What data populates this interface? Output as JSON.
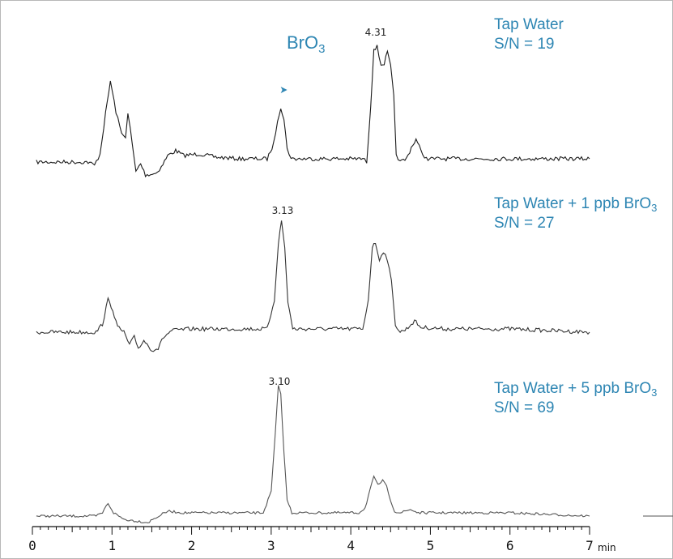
{
  "chart_data": {
    "type": "line",
    "xlabel": "",
    "x_unit": "min",
    "xlim": [
      0,
      7
    ],
    "x_ticks": [
      "0",
      "1",
      "2",
      "3",
      "4",
      "5",
      "6",
      "7"
    ],
    "annotation": {
      "analyte": "BrO",
      "analyte_sub": "3",
      "marker_x": 3.13
    },
    "series": [
      {
        "name": "Tap Water",
        "sn": "S/N = 19",
        "color": "#1a1a1a",
        "peak_label": "4.31",
        "peak_label_x": 4.31,
        "trace": [
          [
            0.05,
            0
          ],
          [
            0.7,
            0
          ],
          [
            0.78,
            -4
          ],
          [
            0.85,
            10
          ],
          [
            0.92,
            60
          ],
          [
            0.98,
            100
          ],
          [
            1.05,
            62
          ],
          [
            1.12,
            35
          ],
          [
            1.17,
            32
          ],
          [
            1.2,
            60
          ],
          [
            1.23,
            40
          ],
          [
            1.27,
            10
          ],
          [
            1.3,
            -12
          ],
          [
            1.36,
            -2
          ],
          [
            1.42,
            -16
          ],
          [
            1.55,
            -14
          ],
          [
            1.62,
            -6
          ],
          [
            1.7,
            8
          ],
          [
            1.8,
            14
          ],
          [
            1.9,
            8
          ],
          [
            2.1,
            10
          ],
          [
            2.3,
            6
          ],
          [
            2.6,
            4
          ],
          [
            2.95,
            4
          ],
          [
            3.03,
            22
          ],
          [
            3.08,
            52
          ],
          [
            3.12,
            68
          ],
          [
            3.16,
            52
          ],
          [
            3.2,
            18
          ],
          [
            3.25,
            4
          ],
          [
            3.6,
            4
          ],
          [
            3.95,
            4
          ],
          [
            4.15,
            4
          ],
          [
            4.2,
            0
          ],
          [
            4.25,
            70
          ],
          [
            4.29,
            140
          ],
          [
            4.33,
            142
          ],
          [
            4.38,
            120
          ],
          [
            4.42,
            122
          ],
          [
            4.46,
            135
          ],
          [
            4.5,
            118
          ],
          [
            4.54,
            80
          ],
          [
            4.57,
            10
          ],
          [
            4.62,
            0
          ],
          [
            4.7,
            4
          ],
          [
            4.76,
            18
          ],
          [
            4.82,
            28
          ],
          [
            4.88,
            14
          ],
          [
            4.95,
            4
          ],
          [
            5.3,
            4
          ],
          [
            6,
            4
          ],
          [
            7,
            4
          ]
        ]
      },
      {
        "name": "Tap Water + 1 ppb BrO",
        "name_sub": "3",
        "sn": "S/N = 27",
        "color": "#333333",
        "peak_label": "3.13",
        "peak_label_x": 3.13,
        "trace": [
          [
            0.05,
            0
          ],
          [
            0.8,
            0
          ],
          [
            0.88,
            10
          ],
          [
            0.95,
            40
          ],
          [
            1.01,
            28
          ],
          [
            1.07,
            6
          ],
          [
            1.15,
            0
          ],
          [
            1.22,
            -16
          ],
          [
            1.28,
            -6
          ],
          [
            1.33,
            -20
          ],
          [
            1.4,
            -10
          ],
          [
            1.5,
            -22
          ],
          [
            1.58,
            -20
          ],
          [
            1.65,
            -6
          ],
          [
            1.75,
            2
          ],
          [
            2,
            4
          ],
          [
            2.5,
            4
          ],
          [
            2.95,
            4
          ],
          [
            3.04,
            40
          ],
          [
            3.09,
            110
          ],
          [
            3.13,
            138
          ],
          [
            3.17,
            104
          ],
          [
            3.21,
            38
          ],
          [
            3.27,
            4
          ],
          [
            3.6,
            4
          ],
          [
            3.9,
            4
          ],
          [
            4.15,
            4
          ],
          [
            4.22,
            40
          ],
          [
            4.27,
            105
          ],
          [
            4.31,
            110
          ],
          [
            4.36,
            90
          ],
          [
            4.41,
            100
          ],
          [
            4.46,
            90
          ],
          [
            4.51,
            62
          ],
          [
            4.56,
            10
          ],
          [
            4.62,
            0
          ],
          [
            4.7,
            4
          ],
          [
            4.8,
            14
          ],
          [
            4.88,
            6
          ],
          [
            5.2,
            4
          ],
          [
            6,
            4
          ],
          [
            7,
            0
          ]
        ]
      },
      {
        "name": "Tap Water + 5 ppb BrO",
        "name_sub": "3",
        "sn": "S/N = 69",
        "color": "#555555",
        "peak_label": "3.10",
        "peak_label_x": 3.1,
        "trace": [
          [
            0.05,
            0
          ],
          [
            0.8,
            0
          ],
          [
            0.88,
            4
          ],
          [
            0.95,
            16
          ],
          [
            1.02,
            4
          ],
          [
            1.15,
            -4
          ],
          [
            1.3,
            -6
          ],
          [
            1.45,
            -8
          ],
          [
            1.55,
            -2
          ],
          [
            1.7,
            6
          ],
          [
            1.9,
            4
          ],
          [
            2.5,
            4
          ],
          [
            2.9,
            4
          ],
          [
            3,
            30
          ],
          [
            3.05,
            100
          ],
          [
            3.09,
            160
          ],
          [
            3.12,
            150
          ],
          [
            3.16,
            80
          ],
          [
            3.2,
            20
          ],
          [
            3.26,
            4
          ],
          [
            3.6,
            4
          ],
          [
            4.1,
            4
          ],
          [
            4.18,
            10
          ],
          [
            4.24,
            32
          ],
          [
            4.29,
            48
          ],
          [
            4.34,
            38
          ],
          [
            4.4,
            44
          ],
          [
            4.45,
            36
          ],
          [
            4.5,
            20
          ],
          [
            4.55,
            6
          ],
          [
            4.62,
            4
          ],
          [
            4.75,
            8
          ],
          [
            4.85,
            4
          ],
          [
            5.3,
            4
          ],
          [
            6,
            4
          ],
          [
            7,
            0
          ]
        ]
      }
    ]
  }
}
